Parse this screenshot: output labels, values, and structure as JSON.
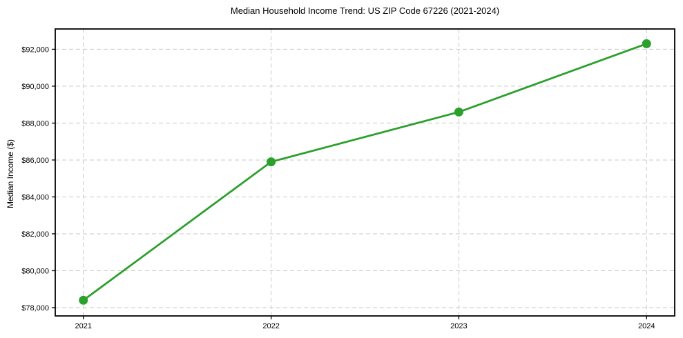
{
  "chart_data": {
    "type": "line",
    "title": "Median Household Income Trend: US ZIP Code 67226 (2021-2024)",
    "xlabel": "",
    "ylabel": "Median Income ($)",
    "x": [
      2021,
      2022,
      2023,
      2024
    ],
    "values": [
      78400,
      85900,
      88600,
      92300
    ],
    "x_tick_labels": [
      "2021",
      "2022",
      "2023",
      "2024"
    ],
    "y_ticks": [
      78000,
      80000,
      82000,
      84000,
      86000,
      88000,
      90000,
      92000
    ],
    "y_tick_labels": [
      "$78,000",
      "$80,000",
      "$82,000",
      "$84,000",
      "$86,000",
      "$88,000",
      "$90,000",
      "$92,000"
    ],
    "xlim": [
      2020.85,
      2024.15
    ],
    "ylim": [
      77550,
      93100
    ],
    "grid": true,
    "grid_style": "dashed",
    "legend_position": "none",
    "line_color": "#2ca02c",
    "marker": "circle",
    "grid_color": "#c9c9c9",
    "axis_color": "#000000",
    "text_color": "#000000",
    "background_color": "#ffffff"
  }
}
